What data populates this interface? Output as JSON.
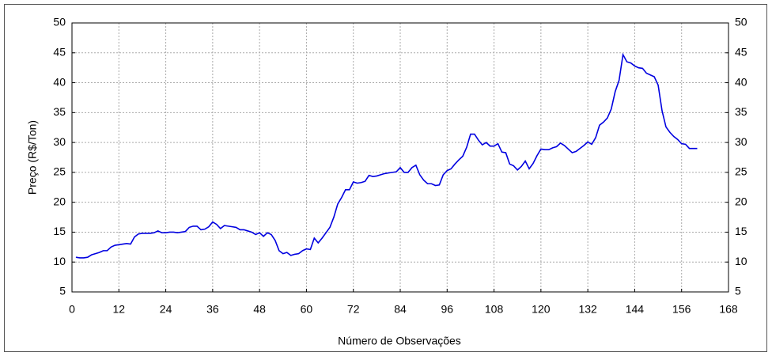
{
  "chart_data": {
    "type": "line",
    "x_label": "Número de Observações",
    "y_label": "Preço (R$/Ton)",
    "x": [
      1,
      2,
      3,
      4,
      5,
      6,
      7,
      8,
      9,
      10,
      11,
      12,
      13,
      14,
      15,
      16,
      17,
      18,
      19,
      20,
      21,
      22,
      23,
      24,
      25,
      26,
      27,
      28,
      29,
      30,
      31,
      32,
      33,
      34,
      35,
      36,
      37,
      38,
      39,
      40,
      41,
      42,
      43,
      44,
      45,
      46,
      47,
      48,
      49,
      50,
      51,
      52,
      53,
      54,
      55,
      56,
      57,
      58,
      59,
      60,
      61,
      62,
      63,
      64,
      65,
      66,
      67,
      68,
      69,
      70,
      71,
      72,
      73,
      74,
      75,
      76,
      77,
      78,
      79,
      80,
      81,
      82,
      83,
      84,
      85,
      86,
      87,
      88,
      89,
      90,
      91,
      92,
      93,
      94,
      95,
      96,
      97,
      98,
      99,
      100,
      101,
      102,
      103,
      104,
      105,
      106,
      107,
      108,
      109,
      110,
      111,
      112,
      113,
      114,
      115,
      116,
      117,
      118,
      119,
      120,
      121,
      122,
      123,
      124,
      125,
      126,
      127,
      128,
      129,
      130,
      131,
      132,
      133,
      134,
      135,
      136,
      137,
      138,
      139,
      140,
      141,
      142,
      143,
      144,
      145,
      146,
      147,
      148,
      149,
      150,
      151,
      152,
      153,
      154,
      155,
      156,
      157,
      158,
      159,
      160
    ],
    "series": [
      {
        "color": "#0000e0",
        "values": [
          10.8,
          10.7,
          10.7,
          10.8,
          11.2,
          11.4,
          11.6,
          11.9,
          11.9,
          12.5,
          12.8,
          12.9,
          13.0,
          13.1,
          13.0,
          14.2,
          14.7,
          14.8,
          14.8,
          14.8,
          14.9,
          15.2,
          14.9,
          14.9,
          15.0,
          15.0,
          14.9,
          15.0,
          15.1,
          15.8,
          16.0,
          16.0,
          15.4,
          15.5,
          15.9,
          16.7,
          16.3,
          15.6,
          16.1,
          16.0,
          15.9,
          15.8,
          15.4,
          15.4,
          15.2,
          15.0,
          14.6,
          14.9,
          14.3,
          14.9,
          14.6,
          13.6,
          11.9,
          11.4,
          11.6,
          11.1,
          11.3,
          11.4,
          11.9,
          12.2,
          12.1,
          14.0,
          13.2,
          14.0,
          14.9,
          15.8,
          17.5,
          19.7,
          20.8,
          22.1,
          22.1,
          23.4,
          23.2,
          23.3,
          23.5,
          24.5,
          24.3,
          24.4,
          24.6,
          24.8,
          24.9,
          25.0,
          25.1,
          25.8,
          25.0,
          25.0,
          25.8,
          26.2,
          24.6,
          23.7,
          23.1,
          23.1,
          22.8,
          22.9,
          24.6,
          25.3,
          25.6,
          26.4,
          27.1,
          27.7,
          29.2,
          31.4,
          31.4,
          30.4,
          29.6,
          30.0,
          29.4,
          29.4,
          29.8,
          28.4,
          28.3,
          26.4,
          26.1,
          25.4,
          26.0,
          26.9,
          25.6,
          26.5,
          27.8,
          28.9,
          28.8,
          28.8,
          29.1,
          29.3,
          29.9,
          29.5,
          28.9,
          28.3,
          28.5,
          29.0,
          29.5,
          30.1,
          29.7,
          30.8,
          32.9,
          33.4,
          34.1,
          35.6,
          38.5,
          40.4,
          44.7,
          43.5,
          43.3,
          42.8,
          42.5,
          42.4,
          41.6,
          41.3,
          41.0,
          39.6,
          35.3,
          32.6,
          31.7,
          31.0,
          30.5,
          29.8,
          29.7,
          29.0,
          29.0,
          29.0
        ]
      }
    ],
    "xlim": [
      0,
      168
    ],
    "xticks": [
      0,
      12,
      24,
      36,
      48,
      60,
      72,
      84,
      96,
      108,
      120,
      132,
      144,
      156,
      168
    ],
    "ylim": [
      5,
      50
    ],
    "yticks": [
      5,
      10,
      15,
      20,
      25,
      30,
      35,
      40,
      45,
      50
    ],
    "grid": true
  }
}
